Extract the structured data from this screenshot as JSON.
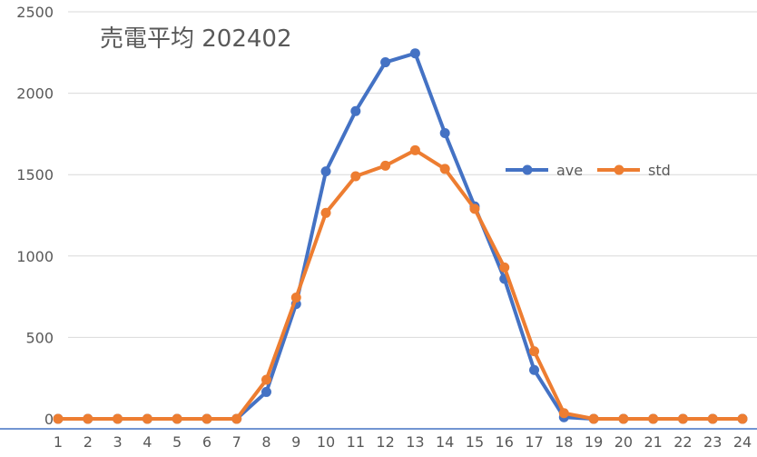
{
  "chart_data": {
    "type": "line",
    "title": "売電平均 202402",
    "xlabel": "",
    "ylabel": "",
    "x": [
      "1",
      "2",
      "3",
      "4",
      "5",
      "6",
      "7",
      "8",
      "9",
      "10",
      "11",
      "12",
      "13",
      "14",
      "15",
      "16",
      "17",
      "18",
      "19",
      "20",
      "21",
      "22",
      "23",
      "24"
    ],
    "ylim": [
      0,
      2500
    ],
    "yticks": [
      "0",
      "500",
      "1000",
      "1500",
      "2000",
      "2500"
    ],
    "grid": "horizontal",
    "legend_position": "right",
    "series": [
      {
        "name": "ave",
        "color": "#4472C4",
        "values": [
          0,
          0,
          0,
          0,
          0,
          0,
          0,
          165,
          705,
          1520,
          1890,
          2190,
          2245,
          1755,
          1305,
          860,
          300,
          10,
          0,
          0,
          0,
          0,
          0,
          0
        ]
      },
      {
        "name": "std",
        "color": "#ED7D31",
        "values": [
          0,
          0,
          0,
          0,
          0,
          0,
          0,
          240,
          745,
          1265,
          1490,
          1555,
          1650,
          1535,
          1290,
          930,
          415,
          35,
          0,
          0,
          0,
          0,
          0,
          0
        ]
      }
    ],
    "gridline_color": "#d9d9d9",
    "axis_color": "#4472C4"
  }
}
